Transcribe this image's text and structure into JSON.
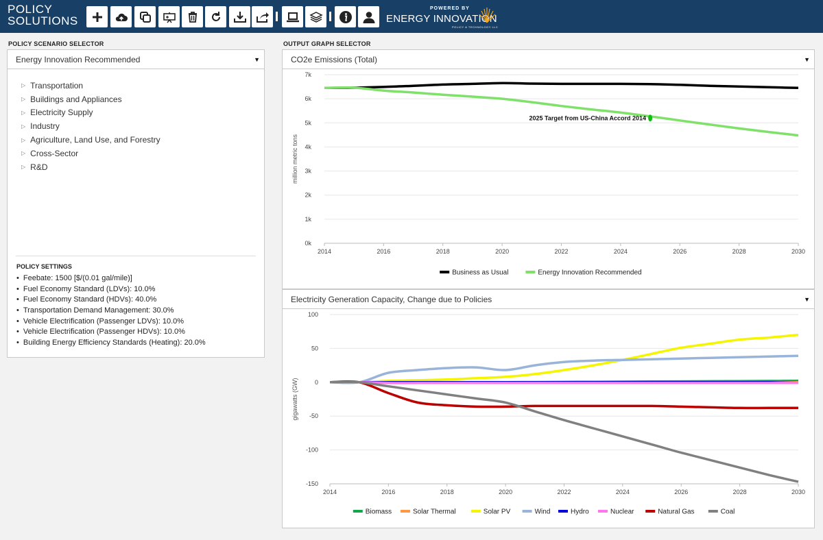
{
  "app": {
    "title_line1": "POLICY",
    "title_line2": "SOLUTIONS"
  },
  "toolbar": {
    "buttons": [
      "add-icon",
      "cloud-icon",
      "copy-icon",
      "presentation-icon",
      "trash-icon",
      "refresh-icon",
      "download-icon",
      "share-icon",
      "laptop-icon",
      "layers-icon",
      "info-icon",
      "user-icon"
    ]
  },
  "branding": {
    "powered_by": "POWERED BY",
    "name": "ENERGY INNOVATION",
    "sub": "POLICY & TECHNOLOGY LLC"
  },
  "left": {
    "selector_label": "POLICY SCENARIO SELECTOR",
    "scenario": "Energy Innovation Recommended",
    "tree": [
      "Transportation",
      "Buildings and Appliances",
      "Electricity Supply",
      "Industry",
      "Agriculture, Land Use, and Forestry",
      "Cross-Sector",
      "R&D"
    ],
    "settings_title": "POLICY SETTINGS",
    "settings": [
      "Feebate: 1500 [$/(0.01 gal/mile)]",
      "Fuel Economy Standard (LDVs): 10.0%",
      "Fuel Economy Standard (HDVs): 40.0%",
      "Transportation Demand Management: 30.0%",
      "Vehicle Electrification (Passenger LDVs): 10.0%",
      "Vehicle Electrification (Passenger HDVs): 10.0%",
      "Building Energy Efficiency Standards (Heating): 20.0%"
    ]
  },
  "right": {
    "selector_label": "OUTPUT GRAPH SELECTOR",
    "graph1": "CO2e Emissions (Total)",
    "graph2": "Electricity Generation Capacity, Change due to Policies"
  },
  "chart_data": [
    {
      "type": "line",
      "title": "CO2e Emissions (Total)",
      "ylabel": "million metric tons",
      "xlabel": "",
      "xlim": [
        2014,
        2030
      ],
      "ylim": [
        0,
        7000
      ],
      "xticks": [
        2014,
        2016,
        2018,
        2020,
        2022,
        2024,
        2026,
        2028,
        2030
      ],
      "yticks": [
        0,
        1000,
        2000,
        3000,
        4000,
        5000,
        6000,
        7000
      ],
      "ytick_labels": [
        "0k",
        "1k",
        "2k",
        "3k",
        "4k",
        "5k",
        "6k",
        "7k"
      ],
      "x": [
        2014,
        2015,
        2016,
        2017,
        2018,
        2019,
        2020,
        2021,
        2022,
        2023,
        2024,
        2025,
        2026,
        2027,
        2028,
        2029,
        2030
      ],
      "series": [
        {
          "name": "Business as Usual",
          "color": "#000000",
          "values": [
            6450,
            6460,
            6490,
            6540,
            6590,
            6620,
            6650,
            6630,
            6620,
            6620,
            6620,
            6610,
            6580,
            6540,
            6510,
            6480,
            6450
          ]
        },
        {
          "name": "Energy Innovation Recommended",
          "color": "#7fe06a",
          "values": [
            6450,
            6460,
            6340,
            6260,
            6170,
            6090,
            6000,
            5860,
            5700,
            5560,
            5430,
            5270,
            5100,
            4930,
            4770,
            4620,
            4480
          ]
        }
      ],
      "annotations": [
        {
          "text": "2025 Target from US-China Accord 2014",
          "x": 2025,
          "y": 5200,
          "color": "#11bb11"
        }
      ],
      "legend": "bottom"
    },
    {
      "type": "line",
      "title": "Electricity Generation Capacity, Change due to Policies",
      "ylabel": "gigawatts (GW)",
      "xlabel": "",
      "xlim": [
        2014,
        2030
      ],
      "ylim": [
        -150,
        100
      ],
      "xticks": [
        2014,
        2016,
        2018,
        2020,
        2022,
        2024,
        2026,
        2028,
        2030
      ],
      "yticks": [
        -150,
        -100,
        -50,
        0,
        50,
        100
      ],
      "x": [
        2014,
        2015,
        2016,
        2017,
        2018,
        2019,
        2020,
        2021,
        2022,
        2023,
        2024,
        2025,
        2026,
        2027,
        2028,
        2029,
        2030
      ],
      "series": [
        {
          "name": "Biomass",
          "color": "#11a84a",
          "values": [
            0,
            0,
            0,
            0,
            0,
            0,
            0,
            0.2,
            0.4,
            0.6,
            0.8,
            1.0,
            1.2,
            1.4,
            1.6,
            1.8,
            2
          ]
        },
        {
          "name": "Solar Thermal",
          "color": "#ff9944",
          "values": [
            0,
            0,
            0,
            0,
            0,
            0,
            0,
            0,
            0,
            0,
            0,
            0,
            0,
            0,
            0,
            0,
            0
          ]
        },
        {
          "name": "Solar PV",
          "color": "#f5f500",
          "values": [
            0,
            0,
            2,
            3,
            4,
            6,
            8,
            12,
            18,
            25,
            33,
            42,
            51,
            57,
            63,
            66,
            70
          ]
        },
        {
          "name": "Wind",
          "color": "#99b4d9",
          "values": [
            0,
            0,
            14,
            18,
            21,
            22,
            18,
            25,
            30,
            32,
            33,
            34,
            35,
            36,
            37,
            38,
            39
          ]
        },
        {
          "name": "Hydro",
          "color": "#0000dd",
          "values": [
            0,
            0,
            0,
            0,
            0,
            0,
            0,
            0,
            0,
            0,
            0,
            0,
            0,
            0,
            0,
            0,
            -1
          ]
        },
        {
          "name": "Nuclear",
          "color": "#ff77ee",
          "values": [
            0,
            0,
            -1,
            -1,
            -1,
            -1,
            -1,
            -1,
            -1,
            -1,
            -1,
            -1,
            -1,
            -1,
            -1,
            -1,
            -1
          ]
        },
        {
          "name": "Natural Gas",
          "color": "#bb0000",
          "values": [
            0,
            0,
            -16,
            -30,
            -34,
            -36,
            -36,
            -35,
            -35,
            -35,
            -35,
            -35,
            -36,
            -37,
            -38,
            -38,
            -38
          ]
        },
        {
          "name": "Coal",
          "color": "#808080",
          "values": [
            0,
            0,
            -6,
            -12,
            -18,
            -24,
            -30,
            -43,
            -56,
            -68,
            -80,
            -92,
            -104,
            -115,
            -126,
            -137,
            -147
          ]
        }
      ],
      "legend": "bottom"
    }
  ]
}
